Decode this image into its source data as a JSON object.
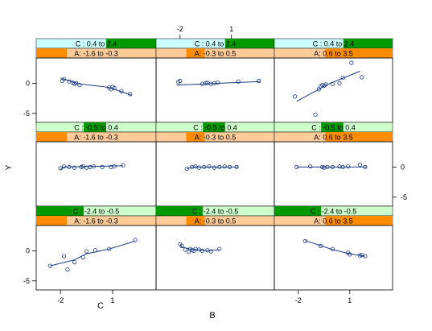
{
  "chart_data": {
    "type": "scatter",
    "title": "",
    "xlabel": "B",
    "ylabel": "Y",
    "xlabel_small": "C",
    "xlim": [
      -3.4,
      3.5
    ],
    "ylim": [
      -6.5,
      4.2
    ],
    "x_ticks": [
      -2,
      1
    ],
    "y_ticks": [
      0,
      -5
    ],
    "tick_labels": {
      "x": [
        "-2",
        "1"
      ],
      "y": [
        "0",
        "-5"
      ]
    },
    "strip_colors": {
      "shingle_bg": "#ccffcc",
      "shingle_fill": "#009900",
      "shingle_bg_top": "#ccffff",
      "a_bg": "#ffcc99",
      "a_fill": "#ff8c00"
    },
    "line_color": "#1a3a80",
    "c_range": [
      -2.4,
      2.4
    ],
    "a_range": [
      -1.6,
      3.5
    ],
    "panels": [
      {
        "c_label": "C : 0.4 to 2.4",
        "c_lo": 0.4,
        "c_hi": 2.4,
        "a_label": "A: -1.6 to -0.3",
        "a_lo": -1.6,
        "a_hi": -0.3,
        "x": [
          -1.9,
          -1.8,
          -1.5,
          -1.3,
          -1.2,
          -1.1,
          -0.9,
          0.8,
          0.9,
          1.0,
          1.1,
          1.5,
          2.0
        ],
        "y": [
          0.4,
          0.7,
          0.3,
          0.1,
          -0.1,
          0.0,
          -0.3,
          -0.7,
          -1.0,
          -0.6,
          -0.8,
          -1.3,
          -1.8
        ],
        "fit": [
          [
            -2.0,
            0.9
          ],
          [
            -1.3,
            0.2
          ],
          [
            -0.9,
            -0.1
          ],
          [
            0.8,
            -0.7
          ],
          [
            2.1,
            -2.0
          ]
        ]
      },
      {
        "c_label": "C : 0.4 to 2.4",
        "c_lo": 0.4,
        "c_hi": 2.4,
        "a_label": "A: -0.3 to 0.5",
        "a_lo": -0.3,
        "a_hi": 0.5,
        "x": [
          -2.1,
          -2.0,
          -0.7,
          -0.5,
          -0.4,
          -0.2,
          0.0,
          0.2,
          1.4,
          2.6
        ],
        "y": [
          0.2,
          0.4,
          -0.1,
          0.0,
          0.1,
          -0.1,
          0.0,
          0.1,
          0.3,
          0.4
        ],
        "fit": [
          [
            -2.2,
            -0.3
          ],
          [
            2.7,
            0.3
          ]
        ]
      },
      {
        "c_label": "C : 0.4 to 2.4",
        "c_lo": 0.4,
        "c_hi": 2.4,
        "a_label": "A: 0.6 to 3.5",
        "a_lo": 0.6,
        "a_hi": 3.5,
        "x": [
          -2.2,
          -1.0,
          -0.8,
          -0.7,
          -0.6,
          -0.5,
          -0.4,
          0.0,
          0.4,
          0.6,
          1.1,
          1.7
        ],
        "y": [
          -2.2,
          -5.2,
          -1.0,
          -0.5,
          -0.3,
          -0.4,
          -0.2,
          -0.1,
          0.0,
          0.9,
          3.4,
          1.0
        ],
        "fit": [
          [
            -2.1,
            -3.0
          ],
          [
            -0.8,
            -1.0
          ],
          [
            -0.3,
            -0.2
          ],
          [
            1.6,
            2.0
          ]
        ]
      },
      {
        "c_label": "C : -0.5 to 0.4",
        "c_lo": -0.5,
        "c_hi": 0.4,
        "a_label": "A: -1.6 to -0.3",
        "a_lo": -1.6,
        "a_hi": -0.3,
        "x": [
          -2.0,
          -1.8,
          -1.5,
          -1.2,
          -0.8,
          -0.7,
          -0.5,
          -0.3,
          -0.1,
          0.4,
          0.9,
          1.1,
          1.6
        ],
        "y": [
          -0.2,
          0.1,
          0.0,
          -0.1,
          0.0,
          0.1,
          -0.1,
          0.0,
          0.1,
          0.0,
          0.0,
          0.1,
          0.3
        ],
        "fit": [
          [
            -2.0,
            -0.4
          ],
          [
            -1.8,
            0.0
          ],
          [
            1.6,
            0.2
          ]
        ]
      },
      {
        "c_label": "C : -0.5 to 0.4",
        "c_lo": -0.5,
        "c_hi": 0.4,
        "a_label": "A: -0.3 to 0.5",
        "a_lo": -0.3,
        "a_hi": 0.5,
        "x": [
          -1.6,
          -1.3,
          -1.1,
          -0.9,
          -0.6,
          -0.3,
          0.0,
          0.3,
          0.6,
          0.9,
          1.3
        ],
        "y": [
          -0.3,
          0.0,
          0.1,
          -0.1,
          0.0,
          0.1,
          -0.1,
          0.0,
          0.1,
          0.0,
          0.0
        ],
        "fit": [
          [
            -1.6,
            -0.3
          ],
          [
            -1.3,
            0.0
          ],
          [
            1.4,
            0.0
          ]
        ]
      },
      {
        "c_label": "C : -0.5 to 0.4",
        "c_lo": -0.5,
        "c_hi": 0.4,
        "a_label": "A: 0.6 to 3.5",
        "a_lo": 0.6,
        "a_hi": 3.5,
        "x": [
          -2.1,
          -1.3,
          -0.6,
          -0.5,
          -0.3,
          0.0,
          0.4,
          0.6,
          0.9,
          1.6,
          1.9
        ],
        "y": [
          0.0,
          0.1,
          0.0,
          -0.1,
          0.0,
          0.0,
          0.1,
          0.0,
          0.1,
          0.4,
          0.0
        ],
        "fit": [
          [
            -2.1,
            0.0
          ],
          [
            2.0,
            0.0
          ]
        ]
      },
      {
        "c_label": "C : -2.4 to -0.5",
        "c_lo": -2.4,
        "c_hi": -0.5,
        "a_label": "A: -1.6 to -0.3",
        "a_lo": -1.6,
        "a_hi": -0.3,
        "x": [
          -2.6,
          -1.8,
          -1.6,
          -1.2,
          -0.7,
          -0.5,
          0.0,
          0.8,
          2.3
        ],
        "y": [
          -2.5,
          -0.9,
          -3.1,
          -1.9,
          -1.1,
          -0.1,
          0.1,
          0.3,
          1.8
        ],
        "fit": [
          [
            -2.6,
            -2.5
          ],
          [
            -1.2,
            -1.5
          ],
          [
            -0.5,
            -0.5
          ],
          [
            0.8,
            0.3
          ],
          [
            2.3,
            1.6
          ]
        ]
      },
      {
        "c_label": "C : -2.4 to -0.5",
        "c_lo": -2.4,
        "c_hi": -0.5,
        "a_label": "A: -0.3 to 0.5",
        "a_lo": -0.3,
        "a_hi": 0.5,
        "x": [
          -2.0,
          -1.9,
          -1.7,
          -1.5,
          -1.4,
          -1.3,
          -1.2,
          -1.1,
          -0.9,
          -0.7,
          -0.4,
          -0.2,
          0.3
        ],
        "y": [
          1.1,
          0.8,
          0.2,
          -0.2,
          0.3,
          0.1,
          0.0,
          0.3,
          0.2,
          0.0,
          0.1,
          -0.1,
          0.3
        ],
        "fit": [
          [
            -2.0,
            1.0
          ],
          [
            -1.9,
            0.6
          ],
          [
            -1.4,
            0.3
          ],
          [
            -1.0,
            0.2
          ],
          [
            -0.4,
            0.0
          ],
          [
            0.3,
            0.2
          ]
        ]
      },
      {
        "c_label": "C : -2.4 to -0.5",
        "c_lo": -2.4,
        "c_hi": -0.5,
        "a_label": "A: 0.6 to 3.5",
        "a_lo": 0.6,
        "a_hi": 3.5,
        "x": [
          -1.6,
          -0.7,
          0.0,
          0.9,
          1.0,
          1.6,
          1.7,
          1.9
        ],
        "y": [
          1.6,
          0.8,
          0.3,
          -0.3,
          -0.6,
          -0.8,
          -0.7,
          -0.9
        ],
        "fit": [
          [
            -1.6,
            1.7
          ],
          [
            0.0,
            0.2
          ],
          [
            1.0,
            -0.5
          ],
          [
            1.9,
            -0.9
          ]
        ]
      }
    ]
  }
}
